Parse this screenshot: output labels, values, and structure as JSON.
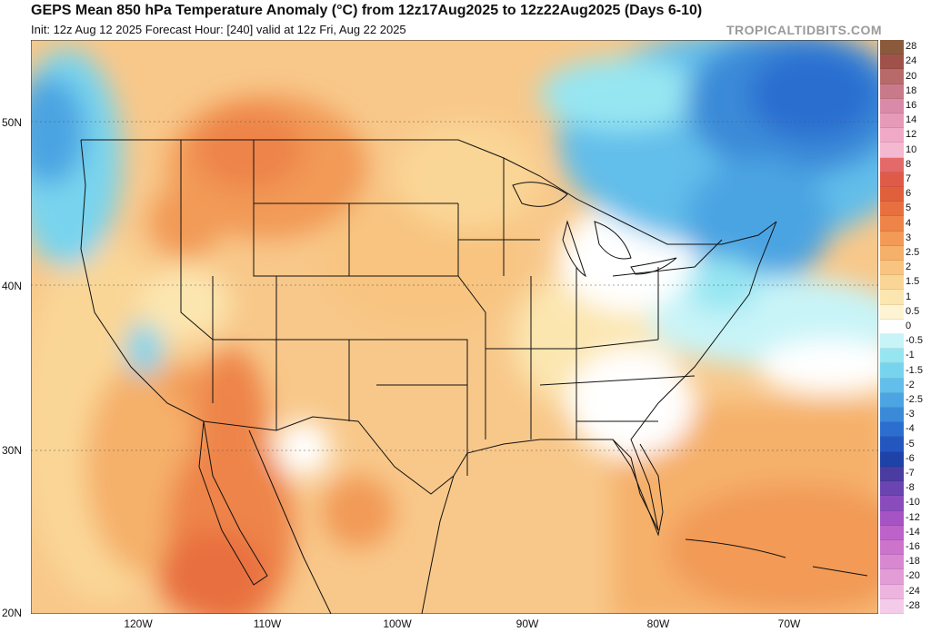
{
  "header": {
    "title": "GEPS Mean 850 hPa Temperature Anomaly (°C) from 12z17Aug2025 to 12z22Aug2025 (Days 6-10)",
    "subtitle": "Init: 12z Aug 12 2025   Forecast Hour: [240]   valid at 12z Fri, Aug 22 2025",
    "brand": "TROPICALTIDBITS.COM"
  },
  "axes": {
    "lat_labels": [
      "50N",
      "40N",
      "30N",
      "20N"
    ],
    "lon_labels": [
      "120W",
      "110W",
      "100W",
      "90W",
      "80W",
      "70W"
    ]
  },
  "colorbar": {
    "labels": [
      "28",
      "24",
      "20",
      "18",
      "16",
      "14",
      "12",
      "10",
      "8",
      "7",
      "6",
      "5",
      "4",
      "3",
      "2.5",
      "2",
      "1.5",
      "1",
      "0.5",
      "0",
      "-0.5",
      "-1",
      "-1.5",
      "-2",
      "-2.5",
      "-3",
      "-4",
      "-5",
      "-6",
      "-7",
      "-8",
      "-10",
      "-12",
      "-14",
      "-16",
      "-18",
      "-20",
      "-24",
      "-28"
    ],
    "colors": [
      "#8b5a3c",
      "#a0524a",
      "#b86a6a",
      "#c97a8a",
      "#d98aa8",
      "#e69ab8",
      "#f0aac8",
      "#f4b8d0",
      "#e46a6a",
      "#e05a48",
      "#e0603c",
      "#e87040",
      "#ee8448",
      "#f29a56",
      "#f5b06a",
      "#f8c480",
      "#fad696",
      "#fce6b0",
      "#fef4d4",
      "#ffffff",
      "#c8f4f8",
      "#96e6f2",
      "#78d4ee",
      "#62beea",
      "#4ca4e2",
      "#3a8ad8",
      "#2c6ed0",
      "#2456c0",
      "#1e42a8",
      "#4a3ca0",
      "#6a44b0",
      "#8a4cbc",
      "#a654c4",
      "#bc62c8",
      "#cc74cc",
      "#d888d0",
      "#e29cd6",
      "#ecb4de",
      "#f4ccea"
    ]
  },
  "chart_data": {
    "type": "map",
    "field": "850 hPa temperature anomaly",
    "units": "°C",
    "region": "Continental United States",
    "patterns": [
      {
        "area": "Northern Rockies / Montana",
        "anomaly_c": 3
      },
      {
        "area": "Southwest / Gulf of California",
        "anomaly_c": 3
      },
      {
        "area": "Central Plains",
        "anomaly_c": 1.5
      },
      {
        "area": "Gulf of Mexico",
        "anomaly_c": 1.5
      },
      {
        "area": "Southeast Coast",
        "anomaly_c": 0
      },
      {
        "area": "Pacific Northwest coast",
        "anomaly_c": -1
      },
      {
        "area": "Northeast / Maine",
        "anomaly_c": -2.5
      },
      {
        "area": "Eastern Canada / Quebec",
        "anomaly_c": -3
      }
    ]
  }
}
